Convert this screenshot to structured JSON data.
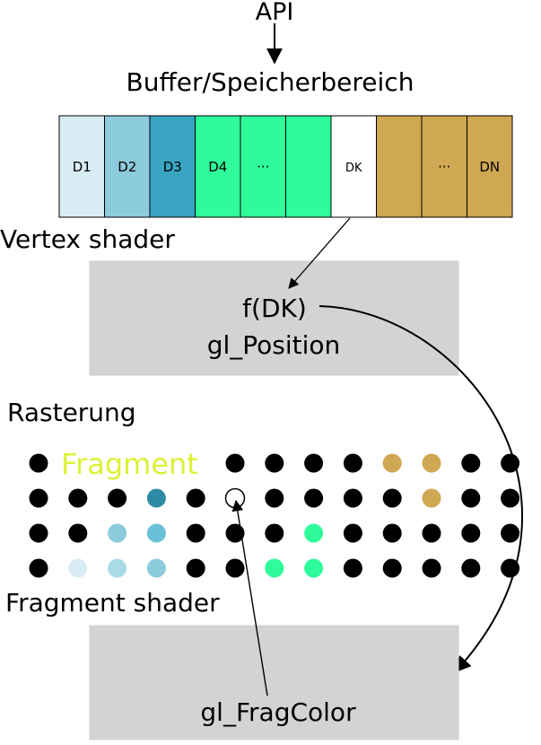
{
  "labels": {
    "api": "API",
    "buffer": "Buffer/Speicherbereich",
    "vertex_shader": "Vertex shader",
    "rasterung": "Rasterung",
    "fragment_label": "Fragment",
    "fragment_shader": "Fragment shader",
    "f_dk": "f(DK)",
    "gl_position": "gl_Position",
    "gl_fragcolor": "gl_FragColor"
  },
  "buffer_cells": [
    {
      "label": "D1",
      "color": "#d8edf3"
    },
    {
      "label": "D2",
      "color": "#8ccbdc"
    },
    {
      "label": "D3",
      "color": "#3aa5c3"
    },
    {
      "label": "D4",
      "color": "#2efc9a"
    },
    {
      "label": "···",
      "color": "#2efc9a"
    },
    {
      "label": "",
      "color": "#2efc9a"
    },
    {
      "label": "DK",
      "color": "#ffffff"
    },
    {
      "label": "",
      "color": "#d0a752"
    },
    {
      "label": "···",
      "color": "#d0a752"
    },
    {
      "label": "DN",
      "color": "#d0a752"
    }
  ],
  "colors": {
    "black": "#000000",
    "gold": "#d0a752",
    "green": "#2efc9a",
    "fragment_text": "#dcf237",
    "shader_box": "#d3d3d3",
    "c_d1": "#d8edf3",
    "c_d2": "#a8dbe6",
    "c_d2b": "#8ccbdc",
    "c_d3": "#6ac0d8",
    "c_dark": "#2e8ba6"
  },
  "fragment_grid": [
    [
      "black",
      "label",
      "label",
      "label",
      "label",
      "black",
      "black",
      "black",
      "black",
      "gold",
      "gold",
      "black",
      "black"
    ],
    [
      "black",
      "black",
      "black",
      "c_dark",
      "black",
      "open",
      "black",
      "black",
      "black",
      "black",
      "gold",
      "black",
      "black"
    ],
    [
      "black",
      "black",
      "c_d2b",
      "c_d3",
      "black",
      "black",
      "black",
      "green",
      "black",
      "black",
      "black",
      "black",
      "black"
    ],
    [
      "black",
      "c_d1",
      "c_d2",
      "c_d2b",
      "black",
      "black",
      "green",
      "green",
      "black",
      "black",
      "black",
      "black",
      "black"
    ]
  ]
}
